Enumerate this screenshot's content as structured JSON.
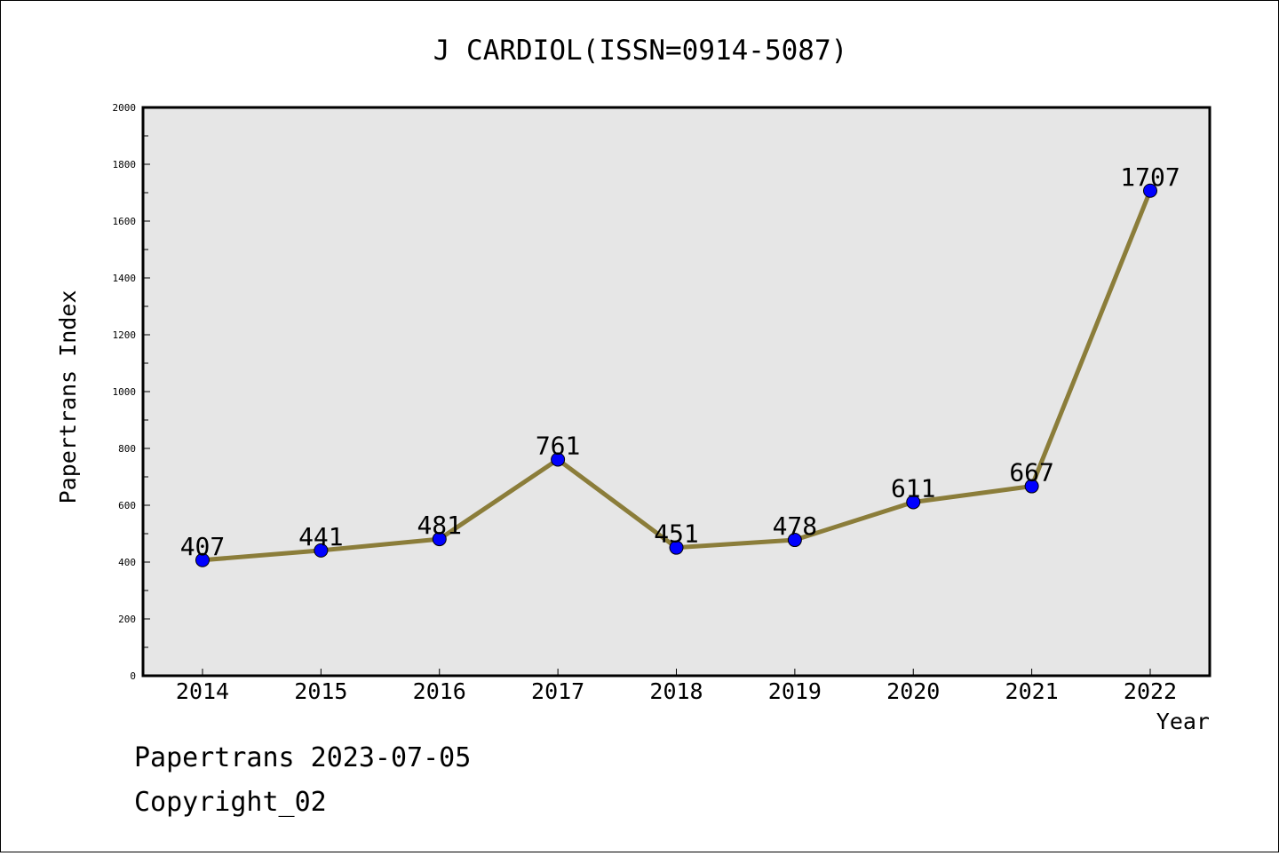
{
  "chart_data": {
    "type": "line",
    "title": "J CARDIOL(ISSN=0914-5087)",
    "xlabel": "Year",
    "ylabel": "Papertrans Index",
    "categories": [
      "2014",
      "2015",
      "2016",
      "2017",
      "2018",
      "2019",
      "2020",
      "2021",
      "2022"
    ],
    "series": [
      {
        "values": [
          407,
          441,
          481,
          761,
          451,
          478,
          611,
          667,
          1707
        ]
      }
    ],
    "ylim": [
      0,
      2000
    ],
    "yticks": [
      0,
      200,
      400,
      600,
      800,
      1000,
      1200,
      1400,
      1600,
      1800,
      2000
    ],
    "grid": false,
    "line_color": "#8b7d3a",
    "marker_color": "#0000ff",
    "plot_background": "#e6e6e6"
  },
  "footer": {
    "line1": "Papertrans 2023-07-05",
    "line2": "Copyright_02"
  }
}
